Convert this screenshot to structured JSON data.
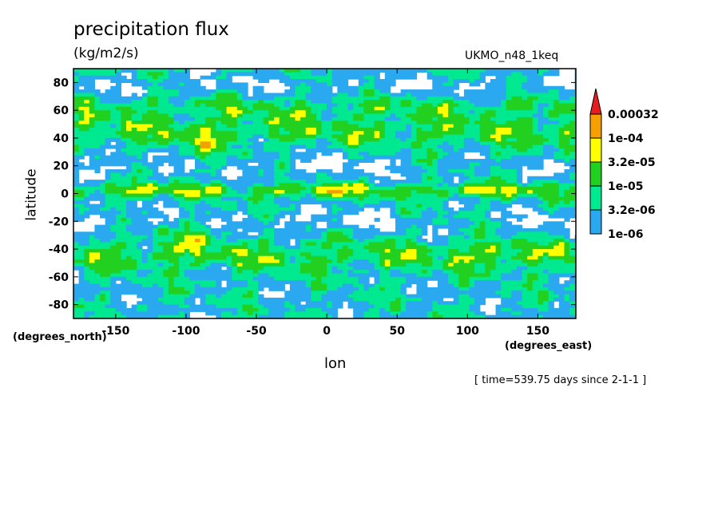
{
  "chart_data": {
    "type": "heatmap",
    "title": "precipitation flux",
    "units": "(kg/m2/s)",
    "dataset": "UKMO_n48_1keq",
    "xlabel": "lon",
    "ylabel": "latitude",
    "x_units": "(degrees_east)",
    "y_units": "(degrees_north)",
    "timestamp": "[ time=539.75 days since 2-1-1 ]",
    "xlim": [
      -180,
      177
    ],
    "ylim": [
      -90,
      90
    ],
    "x_ticks": [
      -150,
      -100,
      -50,
      0,
      50,
      100,
      150
    ],
    "x_tick_labels": [
      "-150",
      "-100",
      "-50",
      "0",
      "50",
      "100",
      "150"
    ],
    "y_ticks": [
      80,
      60,
      40,
      20,
      0,
      -20,
      -40,
      -60,
      -80
    ],
    "y_tick_labels": [
      "80",
      "60",
      "40",
      "20",
      "0",
      "-20",
      "-40",
      "-60",
      "-80"
    ],
    "colorbar": {
      "levels": [
        1e-06,
        3.2e-06,
        1e-05,
        3.2e-05,
        0.0001,
        0.00032
      ],
      "labels": [
        "1e-06",
        "3.2e-06",
        "1e-05",
        "3.2e-05",
        "1e-04",
        "0.00032"
      ],
      "colors": [
        "#ffffff",
        "#2aa8f0",
        "#00e890",
        "#22d020",
        "#ffff00",
        "#f5a000",
        "#e81c1c"
      ]
    },
    "legend_position": "right"
  }
}
